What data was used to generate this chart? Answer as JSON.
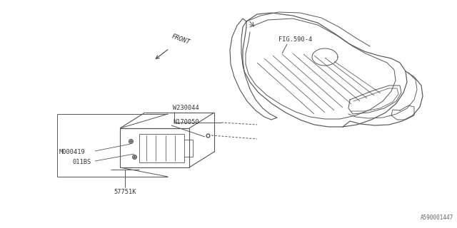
{
  "bg_color": "#ffffff",
  "line_color": "#555555",
  "text_color": "#333333",
  "fig_width": 6.4,
  "fig_height": 3.2,
  "dpi": 100,
  "watermark": "A590001447",
  "labels": {
    "fig_ref": "FIG.590-4",
    "front": "FRONT",
    "part1": "W230044",
    "part2": "N170050",
    "part3": "M000419",
    "part4": "011BS",
    "part5": "57751K"
  }
}
